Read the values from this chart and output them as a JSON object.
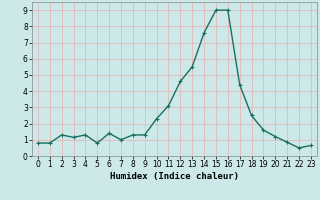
{
  "x": [
    0,
    1,
    2,
    3,
    4,
    5,
    6,
    7,
    8,
    9,
    10,
    11,
    12,
    13,
    14,
    15,
    16,
    17,
    18,
    19,
    20,
    21,
    22,
    23
  ],
  "y": [
    0.8,
    0.8,
    1.3,
    1.15,
    1.3,
    0.8,
    1.4,
    1.0,
    1.3,
    1.3,
    2.3,
    3.1,
    4.6,
    5.5,
    7.6,
    9.0,
    9.0,
    4.4,
    2.5,
    1.6,
    1.2,
    0.85,
    0.5,
    0.65
  ],
  "line_color": "#1a7060",
  "marker": "+",
  "marker_size": 3,
  "xlabel": "Humidex (Indice chaleur)",
  "xlim": [
    -0.5,
    23.5
  ],
  "ylim": [
    0,
    9.5
  ],
  "yticks": [
    0,
    1,
    2,
    3,
    4,
    5,
    6,
    7,
    8,
    9
  ],
  "xticks": [
    0,
    1,
    2,
    3,
    4,
    5,
    6,
    7,
    8,
    9,
    10,
    11,
    12,
    13,
    14,
    15,
    16,
    17,
    18,
    19,
    20,
    21,
    22,
    23
  ],
  "bg_color": "#cce8e8",
  "grid_color": "#e8b0b0",
  "line_width": 1.0,
  "tick_fontsize": 5.5,
  "xlabel_fontsize": 6.5
}
